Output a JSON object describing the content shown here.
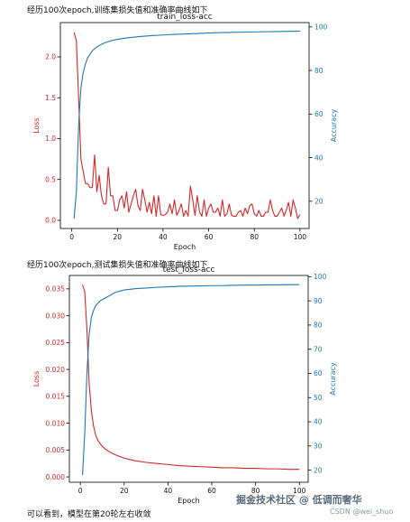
{
  "captions": {
    "train": "经历100次epoch,训练集损失值和准确率曲线如下",
    "test": "经历100次epoch,测试集损失值和准确率曲线如下",
    "conclusion": "可以看到，模型在第20轮左右收敛"
  },
  "watermark": {
    "main": "掘金技术社区 @ 低调而奢华",
    "sub": "CSDN @wei_shuo"
  },
  "colors": {
    "loss": "#d62728",
    "accuracy": "#1f77b4",
    "axis": "#000000"
  },
  "chart_data": [
    {
      "type": "line",
      "title": "train_loss-acc",
      "xlabel": "Epoch",
      "ylabel_left": "Loss",
      "ylabel_right": "Accuracy",
      "xlim": [
        -5,
        104
      ],
      "ylim_left": [
        -0.1,
        2.42
      ],
      "ylim_right": [
        7.5,
        102
      ],
      "xticks": [
        0,
        20,
        40,
        60,
        80,
        100
      ],
      "yticks_left": [
        0.0,
        0.5,
        1.0,
        1.5,
        2.0
      ],
      "yticks_left_labels": [
        "0.0",
        "0.5",
        "1.0",
        "1.5",
        "2.0"
      ],
      "yticks_right": [
        20,
        40,
        60,
        80,
        100
      ],
      "yticks_right_labels": [
        "20",
        "40",
        "60",
        "80",
        "100"
      ],
      "series": [
        {
          "name": "Loss",
          "axis": "left",
          "x": [
            1,
            2,
            3,
            4,
            5,
            6,
            7,
            8,
            9,
            10,
            11,
            12,
            13,
            14,
            15,
            16,
            17,
            18,
            19,
            20,
            21,
            22,
            23,
            24,
            25,
            26,
            27,
            28,
            29,
            30,
            31,
            32,
            33,
            34,
            35,
            36,
            37,
            38,
            39,
            40,
            41,
            42,
            43,
            44,
            45,
            46,
            47,
            48,
            49,
            50,
            51,
            52,
            53,
            54,
            55,
            56,
            57,
            58,
            59,
            60,
            61,
            62,
            63,
            64,
            65,
            66,
            67,
            68,
            69,
            70,
            71,
            72,
            73,
            74,
            75,
            76,
            77,
            78,
            79,
            80,
            81,
            82,
            83,
            84,
            85,
            86,
            87,
            88,
            89,
            90,
            91,
            92,
            93,
            94,
            95,
            96,
            97,
            98,
            99,
            100
          ],
          "values": [
            2.3,
            2.2,
            1.5,
            0.75,
            0.6,
            0.45,
            0.45,
            0.4,
            0.4,
            0.8,
            0.35,
            0.55,
            0.3,
            0.2,
            0.2,
            0.65,
            0.3,
            0.3,
            0.12,
            0.12,
            0.25,
            0.3,
            0.15,
            0.35,
            0.1,
            0.2,
            0.3,
            0.38,
            0.18,
            0.12,
            0.38,
            0.25,
            0.1,
            0.22,
            0.08,
            0.3,
            0.05,
            0.3,
            0.07,
            0.06,
            0.07,
            0.1,
            0.2,
            0.08,
            0.25,
            0.06,
            0.12,
            0.2,
            0.05,
            0.12,
            0.05,
            0.42,
            0.25,
            0.06,
            0.3,
            0.1,
            0.05,
            0.25,
            0.05,
            0.15,
            0.2,
            0.1,
            0.1,
            0.15,
            0.05,
            0.25,
            0.05,
            0.08,
            0.2,
            0.06,
            0.05,
            0.05,
            0.1,
            0.12,
            0.05,
            0.15,
            0.08,
            0.18,
            0.2,
            0.08,
            0.05,
            0.12,
            0.05,
            0.05,
            0.1,
            0.1,
            0.25,
            0.12,
            0.05,
            0.05,
            0.1,
            0.15,
            0.05,
            0.12,
            0.22,
            0.05,
            0.25,
            0.15,
            0.02,
            0.07
          ]
        },
        {
          "name": "Accuracy",
          "axis": "right",
          "x": [
            1,
            2,
            3,
            4,
            5,
            6,
            7,
            8,
            9,
            10,
            12,
            14,
            16,
            18,
            20,
            25,
            30,
            35,
            40,
            45,
            50,
            55,
            60,
            65,
            70,
            75,
            80,
            85,
            90,
            95,
            100
          ],
          "values": [
            12,
            24,
            55,
            72,
            79,
            83,
            86,
            87.5,
            89,
            90,
            91.5,
            92.5,
            93.3,
            93.9,
            94.3,
            95.1,
            95.6,
            96,
            96.3,
            96.6,
            96.8,
            97,
            97.2,
            97.4,
            97.5,
            97.6,
            97.7,
            97.8,
            97.9,
            98,
            98.1
          ]
        }
      ]
    },
    {
      "type": "line",
      "title": "test_loss-acc",
      "xlabel": "Epoch",
      "ylabel_left": "Loss",
      "ylabel_right": "Accuracy",
      "xlim": [
        -5,
        104
      ],
      "ylim_left": [
        -0.001,
        0.0375
      ],
      "ylim_right": [
        15,
        100.5
      ],
      "xticks": [
        0,
        20,
        40,
        60,
        80,
        100
      ],
      "yticks_left": [
        0.0,
        0.005,
        0.01,
        0.015,
        0.02,
        0.025,
        0.03,
        0.035
      ],
      "yticks_left_labels": [
        "0.000",
        "0.005",
        "0.010",
        "0.015",
        "0.020",
        "0.025",
        "0.030",
        "0.035"
      ],
      "yticks_right": [
        20,
        30,
        40,
        50,
        60,
        70,
        80,
        90,
        100
      ],
      "yticks_right_labels": [
        "20",
        "30",
        "40",
        "50",
        "60",
        "70",
        "80",
        "90",
        "100"
      ],
      "series": [
        {
          "name": "Loss",
          "axis": "left",
          "x": [
            1,
            2,
            3,
            4,
            5,
            6,
            7,
            8,
            9,
            10,
            12,
            14,
            16,
            18,
            20,
            25,
            30,
            35,
            40,
            45,
            50,
            55,
            60,
            65,
            70,
            75,
            80,
            85,
            90,
            95,
            100
          ],
          "values": [
            0.0358,
            0.0345,
            0.0275,
            0.0175,
            0.0125,
            0.0095,
            0.0078,
            0.0068,
            0.0062,
            0.0057,
            0.005,
            0.0045,
            0.0041,
            0.0038,
            0.0035,
            0.003,
            0.0027,
            0.0025,
            0.0023,
            0.0021,
            0.002,
            0.0019,
            0.0018,
            0.0017,
            0.0017,
            0.0016,
            0.0016,
            0.0015,
            0.0015,
            0.0014,
            0.0014
          ]
        },
        {
          "name": "Accuracy",
          "axis": "right",
          "x": [
            1,
            2,
            3,
            4,
            5,
            6,
            7,
            8,
            9,
            10,
            12,
            14,
            16,
            18,
            20,
            25,
            30,
            35,
            40,
            45,
            50,
            55,
            60,
            65,
            70,
            75,
            80,
            85,
            90,
            95,
            100
          ],
          "values": [
            18,
            35,
            60,
            76,
            83,
            86,
            88,
            89,
            90,
            90.5,
            91.5,
            92.5,
            93.5,
            94,
            94.5,
            95,
            95.3,
            95.6,
            95.8,
            96,
            96.1,
            96.2,
            96.3,
            96.3,
            96.4,
            96.5,
            96.5,
            96.6,
            96.6,
            96.7,
            96.7
          ]
        }
      ]
    }
  ]
}
